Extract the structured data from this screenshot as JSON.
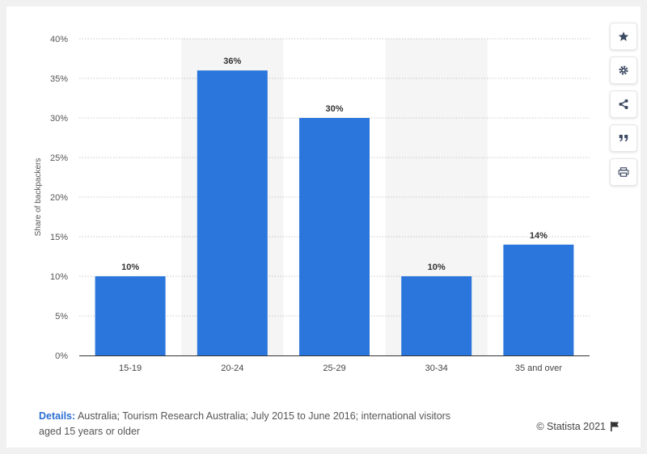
{
  "chart_data": {
    "type": "bar",
    "categories": [
      "15-19",
      "20-24",
      "25-29",
      "30-34",
      "35 and over"
    ],
    "values": [
      10,
      36,
      30,
      10,
      14
    ],
    "value_labels": [
      "10%",
      "36%",
      "30%",
      "10%",
      "14%"
    ],
    "ylabel": "Share of backpackers",
    "ylim": [
      0,
      40
    ],
    "yticks": [
      0,
      5,
      10,
      15,
      20,
      25,
      30,
      35,
      40
    ],
    "ytick_labels": [
      "0%",
      "5%",
      "10%",
      "15%",
      "20%",
      "25%",
      "30%",
      "35%",
      "40%"
    ],
    "grid": true,
    "bar_color": "#2a76dc",
    "band_color": "#f5f5f5"
  },
  "toolbar": {
    "icons": [
      "star-icon",
      "gear-icon",
      "share-icon",
      "quote-icon",
      "print-icon"
    ]
  },
  "footer": {
    "details_label": "Details:",
    "details_text": " Australia; Tourism Research Australia; July 2015 to June 2016; international visitors aged 15 years or older",
    "copyright": "© Statista 2021"
  }
}
